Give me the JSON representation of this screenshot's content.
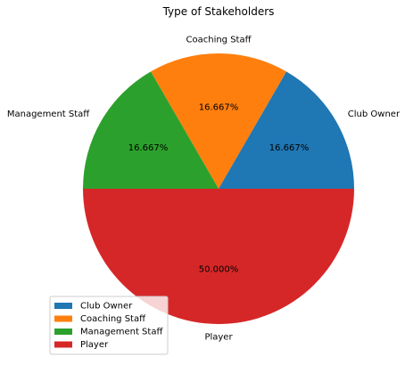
{
  "chart_data": {
    "type": "pie",
    "title": "Type of Stakeholders",
    "start_angle_deg": 0,
    "direction": "counterclockwise",
    "slices": [
      {
        "label": "Club Owner",
        "value": 1,
        "percent_label": "16.667%",
        "color": "#1f77b4"
      },
      {
        "label": "Coaching Staff",
        "value": 1,
        "percent_label": "16.667%",
        "color": "#ff7f0e"
      },
      {
        "label": "Management Staff",
        "value": 1,
        "percent_label": "16.667%",
        "color": "#2ca02c"
      },
      {
        "label": "Player",
        "value": 3,
        "percent_label": "50.000%",
        "color": "#d62728"
      }
    ],
    "legend": {
      "placement": "lower-left",
      "entries": [
        "Club Owner",
        "Coaching Staff",
        "Management Staff",
        "Player"
      ]
    }
  }
}
